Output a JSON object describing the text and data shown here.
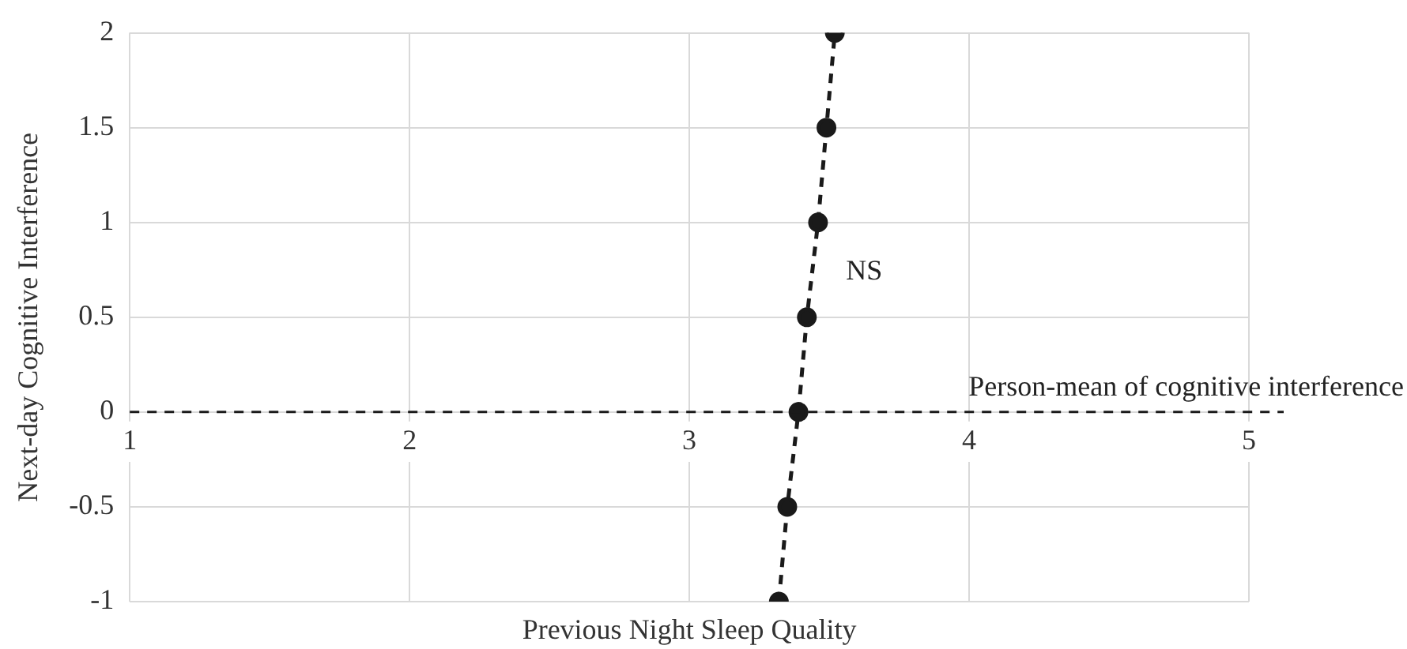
{
  "chart_data": {
    "type": "line",
    "xlabel": "Previous Night Sleep Quality",
    "ylabel": "Next-day Cognitive Interference",
    "x": [
      3.32,
      3.35,
      3.39,
      3.42,
      3.46,
      3.49,
      3.52
    ],
    "series": [
      {
        "color": "#1a1a1a",
        "values": [
          -1,
          -0.5,
          0,
          0.5,
          1,
          1.5,
          2
        ]
      }
    ],
    "xlim": [
      1,
      5
    ],
    "xticks": [
      1,
      2,
      3,
      4,
      5
    ],
    "ylim": [
      -1,
      2
    ],
    "yticks": [
      -1,
      -0.5,
      0,
      0.5,
      1,
      1.5,
      2
    ],
    "grid": true,
    "marker": "circle",
    "line_style": "dashed",
    "legend": false,
    "ref_lines": [
      {
        "axis": "y",
        "value": 0,
        "label": "Person-mean of cognitive interference",
        "color": "#1a1a1a",
        "line_style": "dashed"
      }
    ],
    "annotations": [
      "NS"
    ]
  }
}
